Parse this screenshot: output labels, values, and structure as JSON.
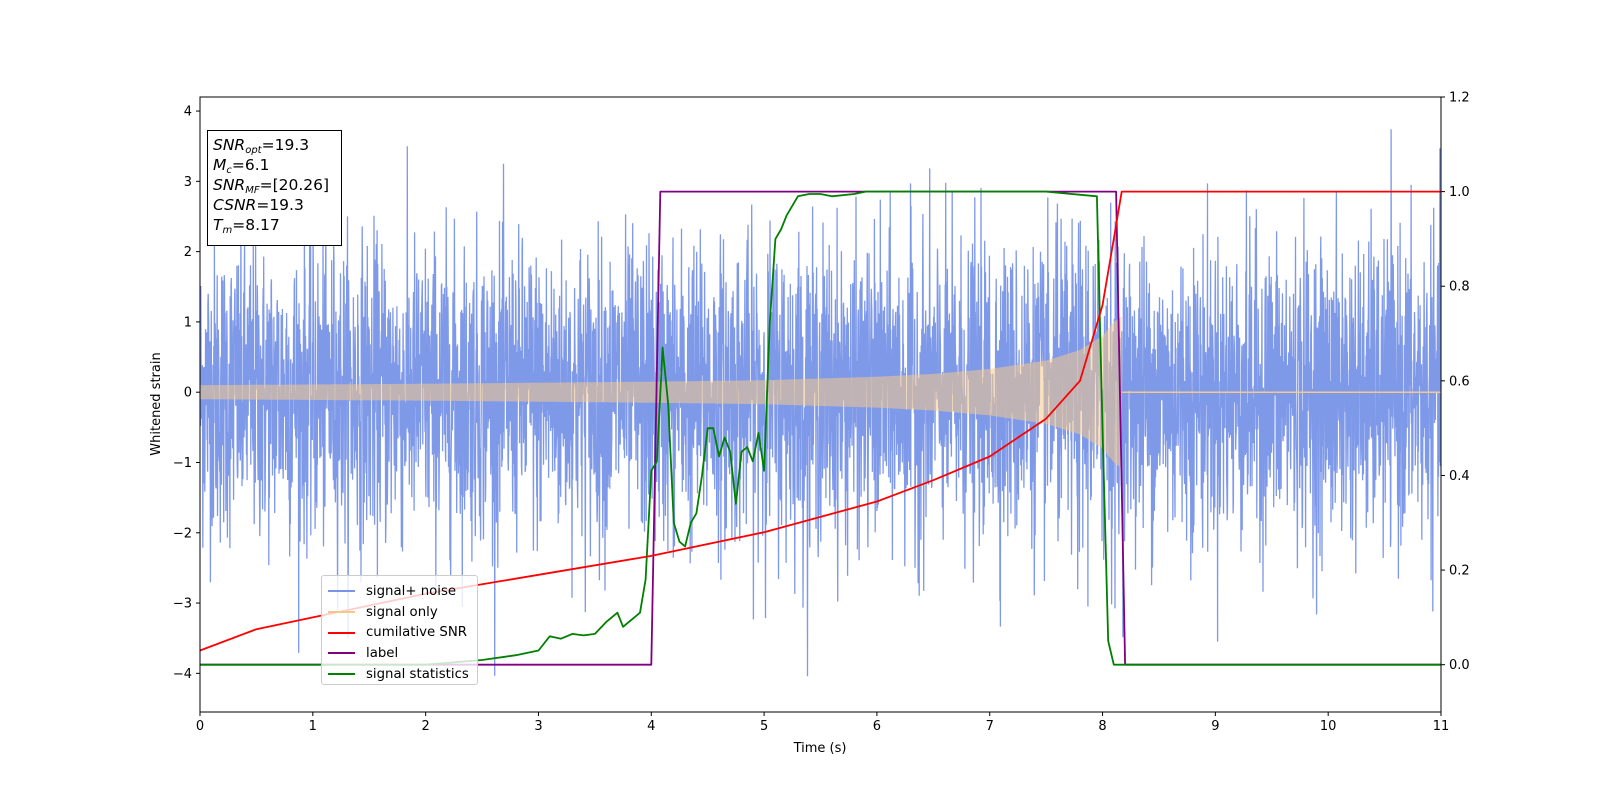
{
  "chart_data": {
    "type": "line",
    "xlabel": "Time (s)",
    "ylabel": "Whitened strain",
    "xlim": [
      0,
      11
    ],
    "ylim": [
      -4.55,
      4.2
    ],
    "y2lim": [
      -0.1,
      1.2
    ],
    "xticks": [
      "0",
      "1",
      "2",
      "3",
      "4",
      "5",
      "6",
      "7",
      "8",
      "9",
      "10",
      "11"
    ],
    "yticks": [
      "−4",
      "−3",
      "−2",
      "−1",
      "0",
      "1",
      "2",
      "3",
      "4"
    ],
    "y2ticks": [
      "0.0",
      "0.2",
      "0.4",
      "0.6",
      "0.8",
      "1.0",
      "1.2"
    ],
    "merger_time": 8.17,
    "annotation": {
      "snr_opt": "=19.3",
      "mc": "=6.1",
      "snr_mf": "=[20.26]",
      "csnr": "=19.3",
      "tm": "=8.17"
    },
    "series": [
      {
        "name": "signal+ noise",
        "color": "#7893e8",
        "axis": "left",
        "description_values": {
          "noise_std": 1.0,
          "peak_max": 3.82,
          "peak_min": -4.1
        }
      },
      {
        "name": "signal only",
        "color": "#f5c88a",
        "axis": "left",
        "envelope": {
          "x": [
            0,
            1,
            2,
            3,
            4,
            5,
            6,
            6.5,
            7,
            7.5,
            7.8,
            8.0,
            8.1,
            8.17
          ],
          "amplitude": [
            0.1,
            0.11,
            0.12,
            0.135,
            0.15,
            0.17,
            0.22,
            0.26,
            0.33,
            0.45,
            0.6,
            0.8,
            1.0,
            1.08
          ]
        }
      },
      {
        "name": "cumilative SNR",
        "color": "#ff0000",
        "axis": "right",
        "x": [
          0,
          0.5,
          1,
          2,
          3,
          4,
          5,
          6,
          6.5,
          7,
          7.5,
          7.8,
          8.0,
          8.1,
          8.17,
          11
        ],
        "y": [
          0.03,
          0.075,
          0.1,
          0.15,
          0.19,
          0.23,
          0.28,
          0.345,
          0.39,
          0.44,
          0.52,
          0.6,
          0.76,
          0.9,
          1.0,
          1.0
        ]
      },
      {
        "name": "label",
        "color": "#800080",
        "axis": "right",
        "x": [
          0,
          4.0,
          4.08,
          8.12,
          8.2,
          11
        ],
        "y": [
          0,
          0,
          1,
          1,
          0,
          0
        ]
      },
      {
        "name": "signal statistics",
        "color": "#008000",
        "axis": "right",
        "x": [
          0,
          0.5,
          1,
          1.5,
          2,
          2.5,
          2.8,
          3.0,
          3.1,
          3.2,
          3.3,
          3.4,
          3.5,
          3.6,
          3.7,
          3.75,
          3.8,
          3.9,
          3.95,
          4.0,
          4.05,
          4.1,
          4.15,
          4.2,
          4.25,
          4.3,
          4.35,
          4.4,
          4.45,
          4.5,
          4.55,
          4.6,
          4.65,
          4.7,
          4.75,
          4.8,
          4.85,
          4.9,
          4.95,
          5.0,
          5.05,
          5.1,
          5.15,
          5.2,
          5.25,
          5.3,
          5.4,
          5.5,
          5.6,
          5.8,
          5.9,
          6.0,
          6.5,
          7.0,
          7.5,
          7.95,
          8.0,
          8.05,
          8.1,
          8.15,
          8.2,
          8.5,
          9,
          10,
          11
        ],
        "y": [
          0.0,
          0.0,
          0.0,
          0.0,
          0.0,
          0.01,
          0.02,
          0.03,
          0.06,
          0.055,
          0.065,
          0.062,
          0.065,
          0.09,
          0.11,
          0.08,
          0.09,
          0.11,
          0.18,
          0.41,
          0.43,
          0.67,
          0.55,
          0.3,
          0.26,
          0.25,
          0.3,
          0.32,
          0.4,
          0.5,
          0.5,
          0.44,
          0.48,
          0.45,
          0.34,
          0.45,
          0.46,
          0.43,
          0.49,
          0.41,
          0.72,
          0.9,
          0.92,
          0.95,
          0.97,
          0.99,
          0.995,
          0.995,
          0.99,
          0.995,
          1.0,
          1.0,
          1.0,
          1.0,
          1.0,
          0.99,
          0.5,
          0.05,
          0.0,
          0.0,
          0.0,
          0.0,
          0.0,
          0.0,
          0.0
        ]
      }
    ],
    "legend_position": "lower left"
  }
}
